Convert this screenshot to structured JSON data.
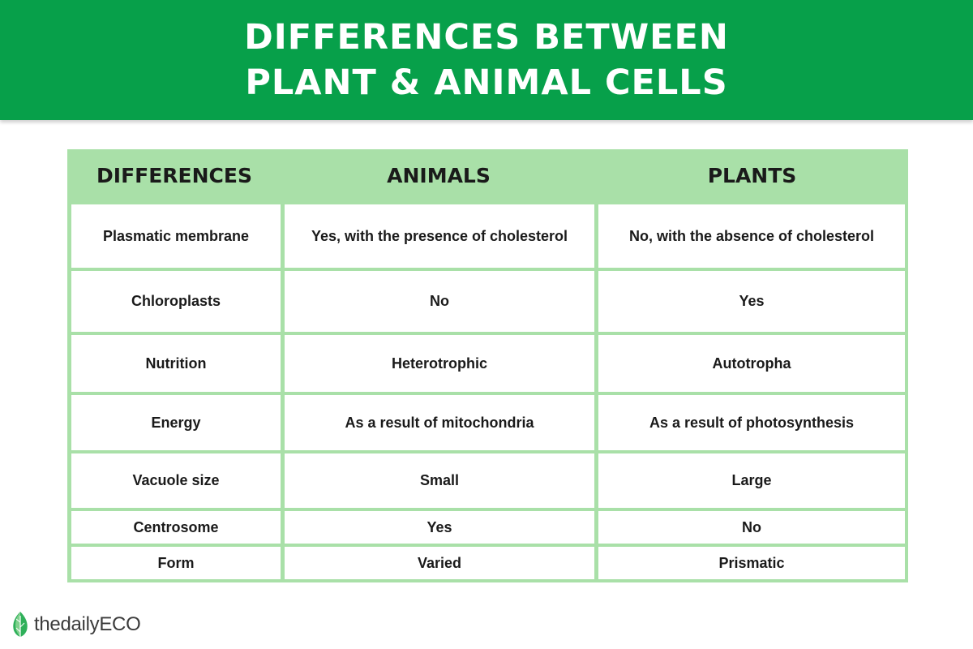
{
  "banner": {
    "line1": "DIFFERENCES BETWEEN",
    "line2": "PLANT & ANIMAL CELLS",
    "color": "#07a04a"
  },
  "table": {
    "header_color": "#a9e0a8",
    "headers": [
      "DIFFERENCES",
      "ANIMALS",
      "PLANTS"
    ],
    "rows": [
      {
        "difference": "Plasmatic membrane",
        "animals": "Yes, with the presence of cholesterol",
        "plants": "No, with the absence of cholesterol"
      },
      {
        "difference": "Chloroplasts",
        "animals": "No",
        "plants": "Yes"
      },
      {
        "difference": "Nutrition",
        "animals": "Heterotrophic",
        "plants": "Autotropha"
      },
      {
        "difference": "Energy",
        "animals": "As a result of mitochondria",
        "plants": "As a result of photosynthesis"
      },
      {
        "difference": "Vacuole size",
        "animals": "Small",
        "plants": "Large"
      },
      {
        "difference": "Centrosome",
        "animals": "Yes",
        "plants": "No"
      },
      {
        "difference": "Form",
        "animals": "Varied",
        "plants": "Prismatic"
      }
    ]
  },
  "footer": {
    "brand": "thedailyECO",
    "logo_icon": "leaf-icon"
  }
}
